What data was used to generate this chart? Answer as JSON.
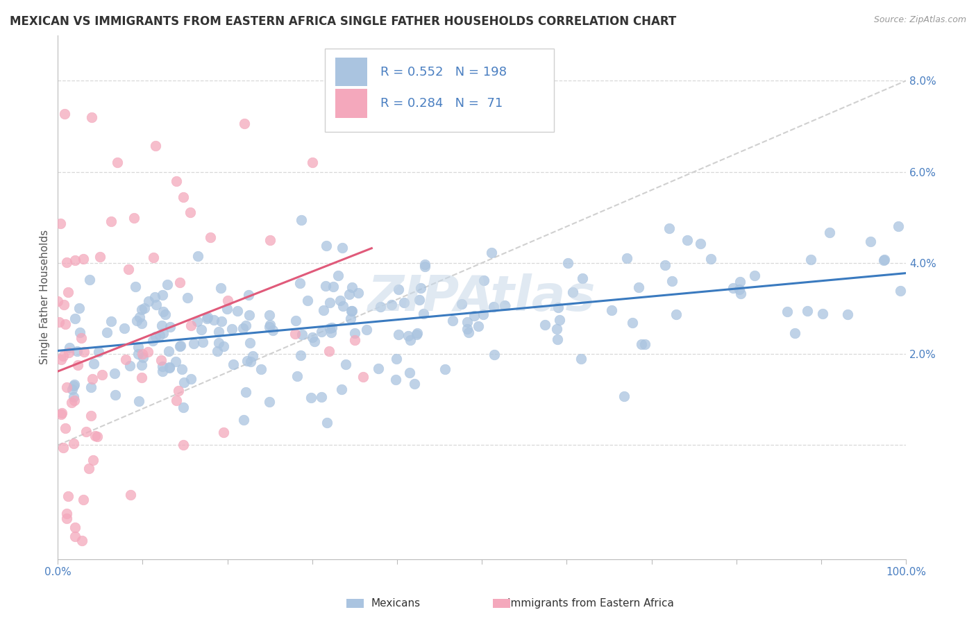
{
  "title": "MEXICAN VS IMMIGRANTS FROM EASTERN AFRICA SINGLE FATHER HOUSEHOLDS CORRELATION CHART",
  "source": "Source: ZipAtlas.com",
  "ylabel": "Single Father Households",
  "xlim": [
    0,
    1.0
  ],
  "ylim": [
    -0.025,
    0.09
  ],
  "x_ticks": [
    0.0,
    0.1,
    0.2,
    0.3,
    0.4,
    0.5,
    0.6,
    0.7,
    0.8,
    0.9,
    1.0
  ],
  "x_tick_labels": [
    "0.0%",
    "",
    "",
    "",
    "",
    "",
    "",
    "",
    "",
    "",
    "100.0%"
  ],
  "y_ticks": [
    0.0,
    0.02,
    0.04,
    0.06,
    0.08
  ],
  "y_tick_labels": [
    "",
    "2.0%",
    "4.0%",
    "6.0%",
    "8.0%"
  ],
  "legend1_R": "0.552",
  "legend1_N": "198",
  "legend2_R": "0.284",
  "legend2_N": "71",
  "blue_scatter_color": "#aac4e0",
  "pink_scatter_color": "#f4a8bc",
  "blue_line_color": "#3a7abf",
  "pink_line_color": "#e05a7a",
  "diagonal_color": "#d0d0d0",
  "tick_color": "#4a7fc1",
  "legend_text_color": "#4a7fc1",
  "watermark_color": "#c8d8e8",
  "title_color": "#333333",
  "ylabel_color": "#555555",
  "watermark": "ZIPAtlas",
  "bottom_legend_left": "Mexicans",
  "bottom_legend_right": "Immigrants from Eastern Africa",
  "title_fontsize": 12,
  "axis_label_fontsize": 11,
  "tick_fontsize": 11,
  "legend_fontsize": 13,
  "watermark_fontsize": 52,
  "seed": 7
}
